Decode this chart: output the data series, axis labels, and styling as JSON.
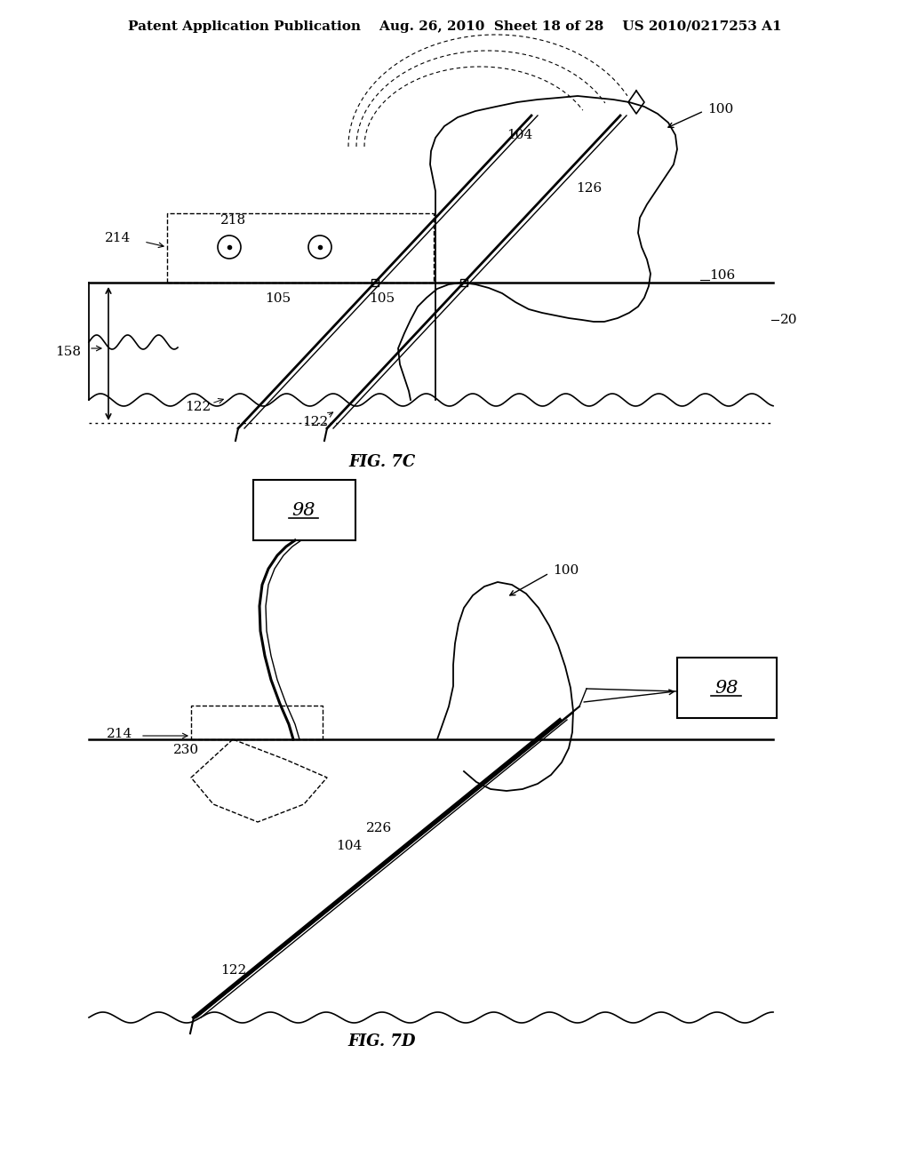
{
  "bg_color": "#ffffff",
  "header_text": "Patent Application Publication    Aug. 26, 2010  Sheet 18 of 28    US 2010/0217253 A1",
  "header_fontsize": 11,
  "fig7c_label": "FIG. 7C",
  "fig7d_label": "FIG. 7D",
  "label_fontsize": 13,
  "ref_fontsize": 11,
  "fig7c": {
    "ref_100": "100",
    "ref_20": "20",
    "ref_106": "106",
    "ref_104": "104",
    "ref_126": "126",
    "ref_122a": "122",
    "ref_122b": "122",
    "ref_105a": "105",
    "ref_105b": "105",
    "ref_214": "214",
    "ref_218": "218",
    "ref_158": "158"
  },
  "fig7d": {
    "ref_100": "100",
    "ref_98a": "98",
    "ref_98b": "98",
    "ref_214": "214",
    "ref_230": "230",
    "ref_226": "226",
    "ref_104": "104",
    "ref_122": "122"
  }
}
